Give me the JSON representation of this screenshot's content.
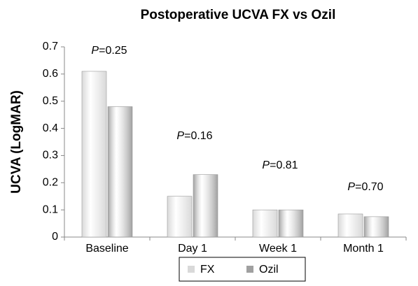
{
  "chart_data": {
    "type": "bar",
    "title": "Postoperative UCVA FX vs Ozil",
    "y_label": "UCVA (LogMAR)",
    "categories": [
      "Baseline",
      "Day 1",
      "Week 1",
      "Month 1"
    ],
    "series": [
      {
        "name": "FX",
        "color": "#d9d9d9",
        "values": [
          0.61,
          0.15,
          0.1,
          0.085
        ]
      },
      {
        "name": "Ozil",
        "color": "#a0a0a0",
        "values": [
          0.48,
          0.23,
          0.1,
          0.075
        ]
      }
    ],
    "annotations": [
      "P=0.25",
      "P=0.16",
      "P=0.81",
      "P=0.70"
    ],
    "ylim": [
      0,
      0.7
    ],
    "yticks": [
      0,
      0.1,
      0.2,
      0.3,
      0.4,
      0.5,
      0.6,
      0.7
    ],
    "legend": "bottom"
  }
}
